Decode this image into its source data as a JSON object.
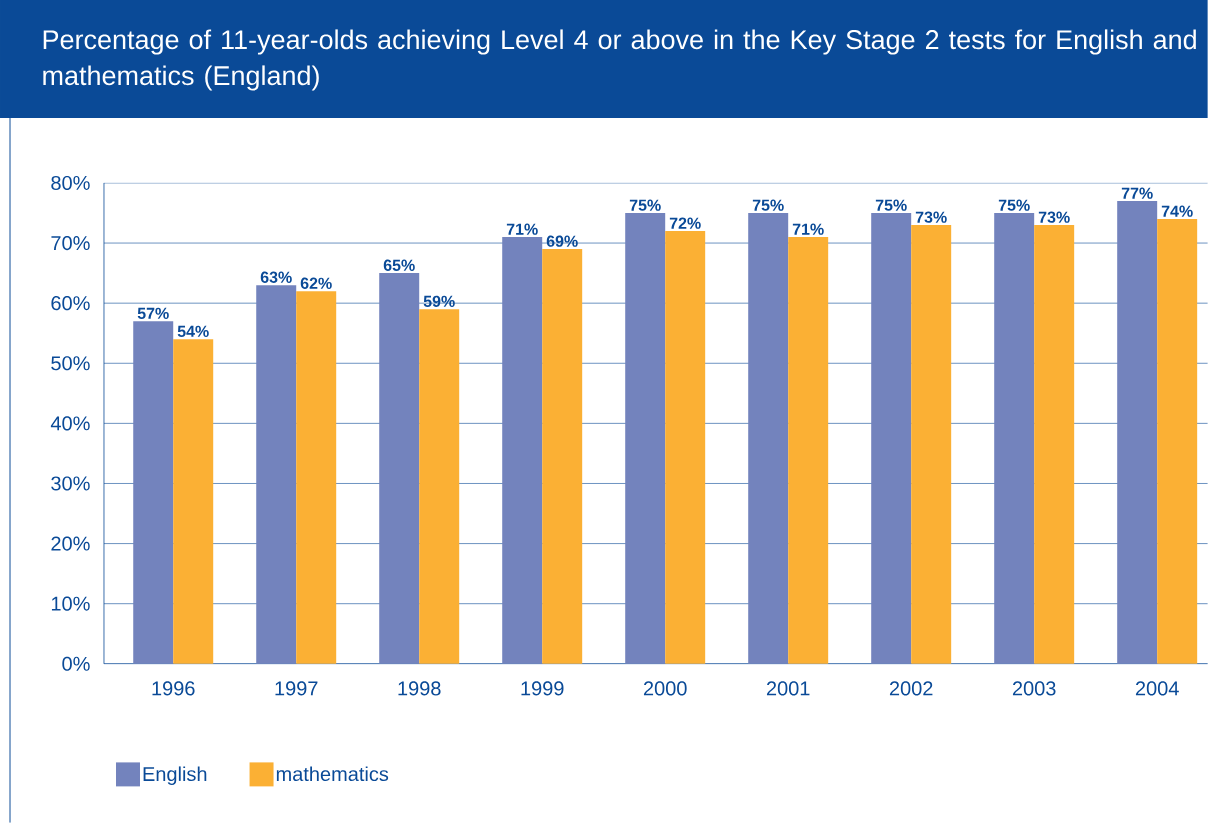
{
  "chart_data": {
    "type": "bar",
    "title": "Percentage of 11-year-olds achieving Level 4 or above in the Key Stage 2 tests for English and mathematics (England)",
    "categories": [
      "1996",
      "1997",
      "1998",
      "1999",
      "2000",
      "2001",
      "2002",
      "2003",
      "2004"
    ],
    "series": [
      {
        "name": "English",
        "color": "#7383bd",
        "values": [
          57,
          63,
          65,
          71,
          75,
          75,
          75,
          75,
          77
        ],
        "value_labels": [
          "57%",
          "63%",
          "65%",
          "71%",
          "75%",
          "75%",
          "75%",
          "75%",
          "77%"
        ]
      },
      {
        "name": "mathematics",
        "color": "#fbb034",
        "values": [
          54,
          62,
          59,
          69,
          72,
          71,
          73,
          73,
          74
        ],
        "value_labels": [
          "54%",
          "62%",
          "59%",
          "69%",
          "72%",
          "71%",
          "73%",
          "73%",
          "74%"
        ]
      }
    ],
    "ylim": [
      0,
      80
    ],
    "yticks": [
      {
        "value": 0,
        "label": "0%"
      },
      {
        "value": 10,
        "label": "10%"
      },
      {
        "value": 20,
        "label": "20%"
      },
      {
        "value": 30,
        "label": "30%"
      },
      {
        "value": 40,
        "label": "40%"
      },
      {
        "value": 50,
        "label": "50%"
      },
      {
        "value": 60,
        "label": "60%"
      },
      {
        "value": 70,
        "label": "70%"
      },
      {
        "value": 80,
        "label": "80%"
      }
    ],
    "grid": "y",
    "legend": "bottom left"
  }
}
